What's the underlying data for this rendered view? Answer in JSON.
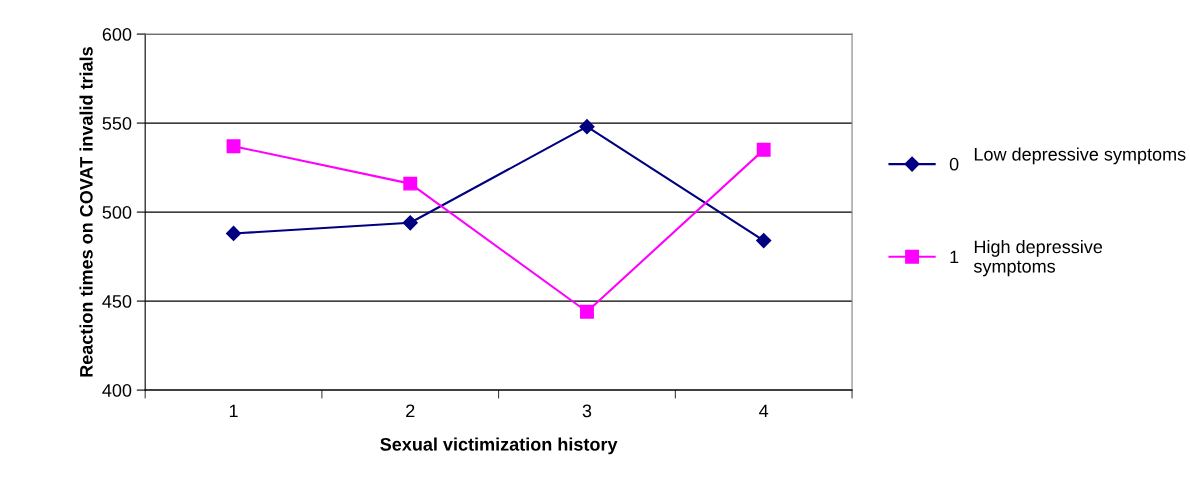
{
  "chart_data": {
    "type": "line",
    "xlabel": "Sexual victimization history",
    "ylabel": "Reaction times on COVAT invalid trials",
    "categories": [
      "1",
      "2",
      "3",
      "4"
    ],
    "series": [
      {
        "name": "0",
        "color": "#000080",
        "marker": "diamond",
        "values": [
          488,
          494,
          548,
          484
        ]
      },
      {
        "name": "1",
        "color": "#ff00ff",
        "marker": "square",
        "values": [
          537,
          516,
          444,
          535
        ]
      }
    ],
    "ylim": [
      400,
      600
    ],
    "yticks": [
      400,
      450,
      500,
      550,
      600
    ],
    "grid": "y",
    "legend": "right",
    "line_style": "solid",
    "annotations": [
      "Low depressive symptoms",
      "High depressive symptoms"
    ]
  }
}
